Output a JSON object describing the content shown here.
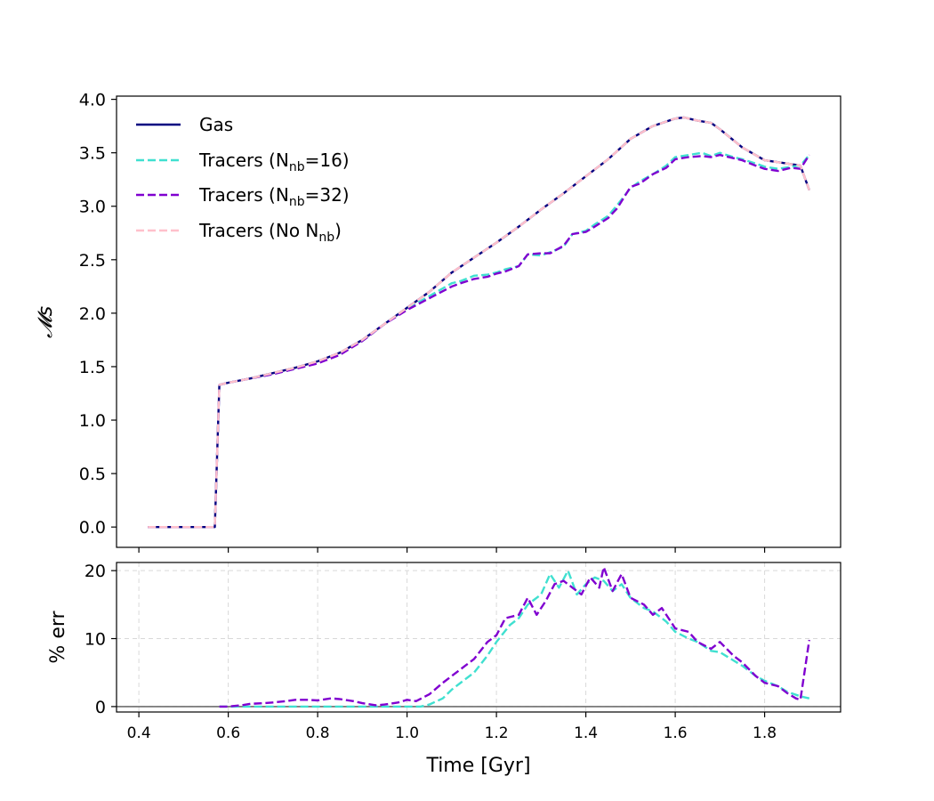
{
  "chart_data": [
    {
      "type": "line",
      "panel": "main",
      "xlabel": "",
      "ylabel": "𝓜s",
      "xlim": [
        0.35,
        1.97
      ],
      "ylim": [
        -0.19,
        4.03
      ],
      "yticks": [
        0.0,
        0.5,
        1.0,
        1.5,
        2.0,
        2.5,
        3.0,
        3.5,
        4.0
      ],
      "ytick_labels": [
        "0.0",
        "0.5",
        "1.0",
        "1.5",
        "2.0",
        "2.5",
        "3.0",
        "3.5",
        "4.0"
      ],
      "xticks": [
        0.4,
        0.6,
        0.8,
        1.0,
        1.2,
        1.4,
        1.6,
        1.8
      ],
      "grid": false,
      "legend_position": "top-left",
      "legend": [
        {
          "main": "Gas",
          "sub": "",
          "tail": ""
        },
        {
          "main": "Tracers (N",
          "sub": "nb",
          "tail": "=16)"
        },
        {
          "main": "Tracers (N",
          "sub": "nb",
          "tail": "=32)"
        },
        {
          "main": "Tracers (No N",
          "sub": "nb",
          "tail": ")"
        }
      ],
      "series": [
        {
          "name": "Gas",
          "color": "#000080",
          "style": "solid",
          "x": [
            0.42,
            0.57,
            0.58,
            0.6,
            0.65,
            0.7,
            0.75,
            0.8,
            0.85,
            0.9,
            0.95,
            1.0,
            1.05,
            1.1,
            1.15,
            1.2,
            1.25,
            1.3,
            1.35,
            1.4,
            1.45,
            1.5,
            1.55,
            1.6,
            1.62,
            1.65,
            1.68,
            1.7,
            1.75,
            1.8,
            1.85,
            1.88,
            1.9
          ],
          "y": [
            0.0,
            0.0,
            1.33,
            1.35,
            1.39,
            1.44,
            1.49,
            1.55,
            1.63,
            1.75,
            1.9,
            2.05,
            2.2,
            2.38,
            2.52,
            2.66,
            2.81,
            2.97,
            3.12,
            3.28,
            3.44,
            3.63,
            3.75,
            3.82,
            3.83,
            3.8,
            3.78,
            3.72,
            3.55,
            3.43,
            3.4,
            3.38,
            3.15
          ]
        },
        {
          "name": "Tracers (Nnb=16)",
          "color": "#40E0D0",
          "style": "dashed",
          "x": [
            0.42,
            0.57,
            0.58,
            0.6,
            0.65,
            0.7,
            0.75,
            0.8,
            0.85,
            0.9,
            0.95,
            1.0,
            1.05,
            1.1,
            1.12,
            1.15,
            1.18,
            1.2,
            1.22,
            1.25,
            1.27,
            1.3,
            1.32,
            1.35,
            1.37,
            1.4,
            1.42,
            1.45,
            1.47,
            1.5,
            1.52,
            1.55,
            1.58,
            1.6,
            1.63,
            1.66,
            1.68,
            1.7,
            1.73,
            1.75,
            1.78,
            1.8,
            1.83,
            1.86,
            1.88,
            1.9
          ],
          "y": [
            0.0,
            0.0,
            1.33,
            1.35,
            1.39,
            1.43,
            1.48,
            1.54,
            1.62,
            1.74,
            1.9,
            2.04,
            2.16,
            2.28,
            2.3,
            2.35,
            2.36,
            2.38,
            2.41,
            2.44,
            2.55,
            2.54,
            2.57,
            2.62,
            2.74,
            2.77,
            2.83,
            2.91,
            3.01,
            3.17,
            3.23,
            3.3,
            3.38,
            3.46,
            3.48,
            3.5,
            3.47,
            3.5,
            3.46,
            3.44,
            3.4,
            3.37,
            3.35,
            3.37,
            3.38,
            3.48
          ]
        },
        {
          "name": "Tracers (Nnb=32)",
          "color": "#8000D0",
          "style": "dashed",
          "x": [
            0.42,
            0.57,
            0.58,
            0.6,
            0.65,
            0.7,
            0.75,
            0.8,
            0.85,
            0.9,
            0.95,
            1.0,
            1.05,
            1.1,
            1.12,
            1.15,
            1.18,
            1.2,
            1.22,
            1.25,
            1.27,
            1.3,
            1.32,
            1.35,
            1.37,
            1.4,
            1.42,
            1.45,
            1.47,
            1.5,
            1.52,
            1.55,
            1.58,
            1.6,
            1.63,
            1.66,
            1.68,
            1.7,
            1.73,
            1.75,
            1.78,
            1.8,
            1.83,
            1.86,
            1.88,
            1.9
          ],
          "y": [
            0.0,
            0.0,
            1.33,
            1.35,
            1.39,
            1.43,
            1.48,
            1.53,
            1.61,
            1.74,
            1.9,
            2.03,
            2.14,
            2.25,
            2.28,
            2.32,
            2.34,
            2.37,
            2.39,
            2.44,
            2.55,
            2.56,
            2.56,
            2.63,
            2.74,
            2.76,
            2.81,
            2.89,
            2.98,
            3.18,
            3.21,
            3.3,
            3.36,
            3.44,
            3.46,
            3.47,
            3.46,
            3.48,
            3.45,
            3.43,
            3.38,
            3.35,
            3.33,
            3.36,
            3.35,
            3.48
          ]
        },
        {
          "name": "Tracers (No Nnb)",
          "color": "#FFC0CB",
          "style": "dashed",
          "x": [
            0.42,
            0.57,
            0.58,
            0.6,
            0.65,
            0.7,
            0.75,
            0.8,
            0.85,
            0.9,
            0.95,
            1.0,
            1.05,
            1.1,
            1.15,
            1.2,
            1.25,
            1.3,
            1.35,
            1.4,
            1.45,
            1.5,
            1.55,
            1.6,
            1.62,
            1.65,
            1.68,
            1.7,
            1.75,
            1.8,
            1.85,
            1.88,
            1.9
          ],
          "y": [
            0.0,
            0.0,
            1.33,
            1.35,
            1.39,
            1.44,
            1.49,
            1.55,
            1.63,
            1.75,
            1.9,
            2.05,
            2.2,
            2.38,
            2.52,
            2.66,
            2.81,
            2.97,
            3.12,
            3.28,
            3.44,
            3.63,
            3.75,
            3.82,
            3.83,
            3.8,
            3.78,
            3.72,
            3.55,
            3.43,
            3.4,
            3.38,
            3.15
          ]
        }
      ]
    },
    {
      "type": "line",
      "panel": "residual",
      "xlabel": "Time [Gyr]",
      "ylabel": "% err",
      "xlim": [
        0.35,
        1.97
      ],
      "ylim": [
        -0.8,
        21.2
      ],
      "yticks": [
        0,
        10,
        20
      ],
      "ytick_labels": [
        "0",
        "10",
        "20"
      ],
      "xticks": [
        0.4,
        0.6,
        0.8,
        1.0,
        1.2,
        1.4,
        1.6,
        1.8
      ],
      "xtick_labels": [
        "0.4",
        "0.6",
        "0.8",
        "1.0",
        "1.2",
        "1.4",
        "1.6",
        "1.8"
      ],
      "grid": true,
      "reference_line": {
        "y": 0,
        "color": "#555555"
      },
      "series": [
        {
          "name": "Tracers (Nnb=16)",
          "color": "#40E0D0",
          "style": "dashed",
          "x": [
            0.58,
            0.6,
            0.65,
            0.7,
            0.75,
            0.8,
            0.85,
            0.9,
            0.95,
            1.0,
            1.03,
            1.05,
            1.08,
            1.1,
            1.13,
            1.15,
            1.18,
            1.2,
            1.23,
            1.25,
            1.27,
            1.3,
            1.32,
            1.34,
            1.36,
            1.38,
            1.4,
            1.42,
            1.44,
            1.46,
            1.48,
            1.5,
            1.53,
            1.55,
            1.58,
            1.6,
            1.63,
            1.65,
            1.68,
            1.7,
            1.73,
            1.75,
            1.78,
            1.8,
            1.83,
            1.85,
            1.88,
            1.9
          ],
          "y": [
            0,
            0,
            0,
            0,
            0,
            0,
            0,
            0,
            0,
            0,
            0,
            0.3,
            1.2,
            2.5,
            4,
            5,
            7.5,
            9.5,
            12,
            13,
            15,
            16.5,
            19.5,
            17.5,
            20,
            16.5,
            18,
            19,
            18.5,
            17,
            18,
            16,
            14.5,
            14,
            12.5,
            11,
            10,
            9.5,
            8.2,
            8,
            6.8,
            6,
            4.5,
            3.8,
            3,
            2.2,
            1.5,
            1.2
          ]
        },
        {
          "name": "Tracers (Nnb=32)",
          "color": "#8000D0",
          "style": "dashed",
          "x": [
            0.58,
            0.6,
            0.63,
            0.65,
            0.68,
            0.7,
            0.73,
            0.75,
            0.78,
            0.8,
            0.83,
            0.85,
            0.88,
            0.9,
            0.93,
            0.95,
            0.98,
            1.0,
            1.02,
            1.05,
            1.08,
            1.1,
            1.13,
            1.15,
            1.18,
            1.2,
            1.22,
            1.25,
            1.27,
            1.29,
            1.31,
            1.33,
            1.35,
            1.37,
            1.39,
            1.41,
            1.43,
            1.44,
            1.46,
            1.48,
            1.5,
            1.53,
            1.55,
            1.57,
            1.59,
            1.6,
            1.63,
            1.65,
            1.68,
            1.7,
            1.73,
            1.75,
            1.78,
            1.8,
            1.83,
            1.85,
            1.87,
            1.88,
            1.9
          ],
          "y": [
            0,
            0,
            0.2,
            0.4,
            0.5,
            0.6,
            0.8,
            1,
            1,
            0.9,
            1.2,
            1.1,
            0.8,
            0.5,
            0.2,
            0.3,
            0.6,
            1,
            0.8,
            1.8,
            3.5,
            4.5,
            6,
            7,
            9.5,
            10.5,
            13,
            13.5,
            16,
            13.5,
            15.5,
            18,
            18.5,
            17.5,
            16.5,
            19,
            17.5,
            20.5,
            17,
            19.5,
            16,
            15,
            13.5,
            14.5,
            12.5,
            11.5,
            11,
            9.5,
            8.5,
            9.5,
            7.5,
            6.5,
            4.5,
            3.5,
            3,
            2,
            1.2,
            1,
            9.8
          ]
        }
      ]
    }
  ]
}
